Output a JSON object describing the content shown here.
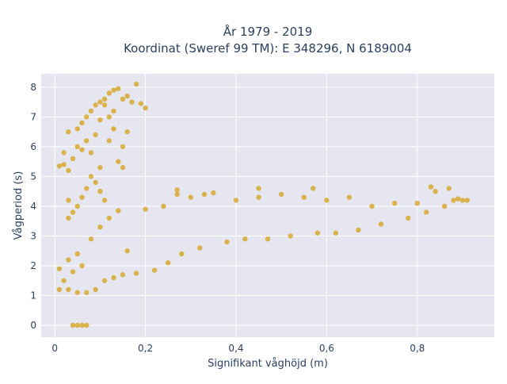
{
  "chart_data": {
    "type": "scatter",
    "title_line1": "År 1979 - 2019",
    "title_line2": "Koordinat (Sweref 99 TM): E 348296, N 6189004",
    "xlabel": "Signifikant våghöjd (m)",
    "ylabel": "Vågperiod (s)",
    "xlim": [
      -0.03,
      0.97
    ],
    "ylim": [
      -0.4,
      8.45
    ],
    "x_ticks": [
      0,
      0.2,
      0.4,
      0.6,
      0.8
    ],
    "x_tick_labels": [
      "0",
      "0,2",
      "0,4",
      "0,6",
      "0,8"
    ],
    "y_ticks": [
      0,
      1,
      2,
      3,
      4,
      5,
      6,
      7,
      8
    ],
    "y_tick_labels": [
      "0",
      "1",
      "2",
      "3",
      "4",
      "5",
      "6",
      "7",
      "8"
    ],
    "grid": true,
    "marker_color": "#d4a017",
    "plot_background": "#e5e6f0",
    "grid_color": "#ffffff",
    "series": [
      {
        "values": [
          [
            0.04,
            0.0
          ],
          [
            0.05,
            0.0
          ],
          [
            0.06,
            0.0
          ],
          [
            0.07,
            0.0
          ],
          [
            0.01,
            5.35
          ],
          [
            0.02,
            5.4
          ],
          [
            0.02,
            5.8
          ],
          [
            0.03,
            6.5
          ],
          [
            0.03,
            5.2
          ],
          [
            0.04,
            5.6
          ],
          [
            0.05,
            6.0
          ],
          [
            0.05,
            6.6
          ],
          [
            0.06,
            6.8
          ],
          [
            0.07,
            7.0
          ],
          [
            0.08,
            7.2
          ],
          [
            0.09,
            7.4
          ],
          [
            0.1,
            7.5
          ],
          [
            0.11,
            7.6
          ],
          [
            0.12,
            7.8
          ],
          [
            0.13,
            7.9
          ],
          [
            0.14,
            7.95
          ],
          [
            0.15,
            7.6
          ],
          [
            0.16,
            7.7
          ],
          [
            0.17,
            7.5
          ],
          [
            0.18,
            8.1
          ],
          [
            0.16,
            6.5
          ],
          [
            0.15,
            6.0
          ],
          [
            0.14,
            5.5
          ],
          [
            0.15,
            5.3
          ],
          [
            0.12,
            6.2
          ],
          [
            0.1,
            6.9
          ],
          [
            0.09,
            6.4
          ],
          [
            0.08,
            5.0
          ],
          [
            0.1,
            4.5
          ],
          [
            0.11,
            4.2
          ],
          [
            0.1,
            5.3
          ],
          [
            0.09,
            4.8
          ],
          [
            0.07,
            4.6
          ],
          [
            0.06,
            4.3
          ],
          [
            0.05,
            4.0
          ],
          [
            0.04,
            3.8
          ],
          [
            0.03,
            3.6
          ],
          [
            0.03,
            4.2
          ],
          [
            0.08,
            5.8
          ],
          [
            0.13,
            7.2
          ],
          [
            0.19,
            7.45
          ],
          [
            0.2,
            7.3
          ],
          [
            0.11,
            7.4
          ],
          [
            0.12,
            7.0
          ],
          [
            0.13,
            6.6
          ],
          [
            0.06,
            5.9
          ],
          [
            0.07,
            6.2
          ],
          [
            0.01,
            1.2
          ],
          [
            0.01,
            1.9
          ],
          [
            0.02,
            1.5
          ],
          [
            0.03,
            1.2
          ],
          [
            0.03,
            2.2
          ],
          [
            0.04,
            1.8
          ],
          [
            0.05,
            1.1
          ],
          [
            0.05,
            2.4
          ],
          [
            0.06,
            2.0
          ],
          [
            0.07,
            1.1
          ],
          [
            0.08,
            2.9
          ],
          [
            0.09,
            1.2
          ],
          [
            0.1,
            3.3
          ],
          [
            0.11,
            1.5
          ],
          [
            0.12,
            3.6
          ],
          [
            0.13,
            1.6
          ],
          [
            0.14,
            3.85
          ],
          [
            0.15,
            1.7
          ],
          [
            0.16,
            2.5
          ],
          [
            0.18,
            1.75
          ],
          [
            0.2,
            3.9
          ],
          [
            0.22,
            1.85
          ],
          [
            0.24,
            4.0
          ],
          [
            0.25,
            2.1
          ],
          [
            0.27,
            4.4
          ],
          [
            0.28,
            2.4
          ],
          [
            0.3,
            4.3
          ],
          [
            0.32,
            2.6
          ],
          [
            0.35,
            4.45
          ],
          [
            0.38,
            2.8
          ],
          [
            0.4,
            4.2
          ],
          [
            0.42,
            2.9
          ],
          [
            0.45,
            4.3
          ],
          [
            0.47,
            2.9
          ],
          [
            0.5,
            4.4
          ],
          [
            0.52,
            3.0
          ],
          [
            0.55,
            4.3
          ],
          [
            0.58,
            3.1
          ],
          [
            0.6,
            4.2
          ],
          [
            0.62,
            3.1
          ],
          [
            0.65,
            4.3
          ],
          [
            0.67,
            3.2
          ],
          [
            0.7,
            4.0
          ],
          [
            0.72,
            3.4
          ],
          [
            0.75,
            4.1
          ],
          [
            0.78,
            3.6
          ],
          [
            0.8,
            4.1
          ],
          [
            0.82,
            3.8
          ],
          [
            0.84,
            4.5
          ],
          [
            0.86,
            4.0
          ],
          [
            0.87,
            4.6
          ],
          [
            0.88,
            4.2
          ],
          [
            0.89,
            4.25
          ],
          [
            0.9,
            4.2
          ],
          [
            0.91,
            4.2
          ],
          [
            0.83,
            4.65
          ],
          [
            0.57,
            4.6
          ],
          [
            0.27,
            4.55
          ],
          [
            0.45,
            4.6
          ],
          [
            0.33,
            4.4
          ]
        ]
      }
    ]
  }
}
